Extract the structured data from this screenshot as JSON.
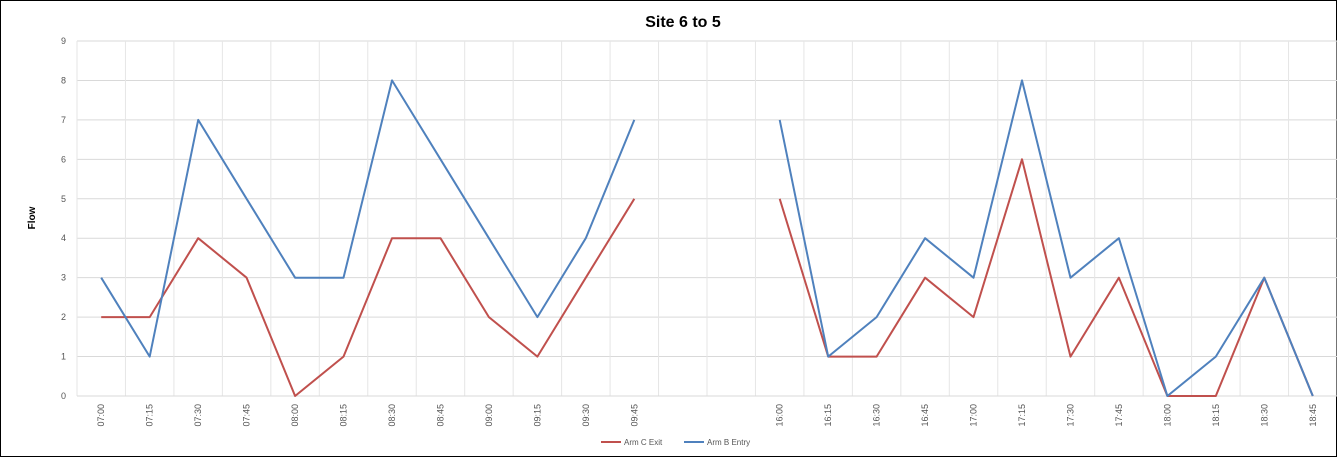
{
  "chart_data": {
    "type": "line",
    "title": "Site 6 to 5",
    "xlabel": "",
    "ylabel": "Flow",
    "ylim": [
      0,
      9
    ],
    "yticks": [
      "0",
      "1",
      "2",
      "3",
      "4",
      "5",
      "6",
      "7",
      "8",
      "9"
    ],
    "grid": true,
    "legend_position": "bottom",
    "categories": [
      "07:00",
      "07:15",
      "07:30",
      "07:45",
      "08:00",
      "08:15",
      "08:30",
      "08:45",
      "09:00",
      "09:15",
      "09:30",
      "09:45",
      "",
      "",
      "16:00",
      "16:15",
      "16:30",
      "16:45",
      "17:00",
      "17:15",
      "17:30",
      "17:45",
      "18:00",
      "18:15",
      "18:30",
      "18:45"
    ],
    "series": [
      {
        "name": "Arm C Exit",
        "color": "#c0504d",
        "values": [
          2,
          2,
          4,
          3,
          0,
          1,
          4,
          4,
          2,
          1,
          3,
          5,
          null,
          null,
          5,
          1,
          1,
          3,
          2,
          6,
          1,
          3,
          0,
          0,
          3,
          0
        ]
      },
      {
        "name": "Arm B Entry",
        "color": "#4f81bd",
        "values": [
          3,
          1,
          7,
          5,
          3,
          3,
          8,
          6,
          4,
          2,
          4,
          7,
          null,
          null,
          7,
          1,
          2,
          4,
          3,
          8,
          3,
          4,
          0,
          1,
          3,
          0
        ]
      }
    ]
  }
}
